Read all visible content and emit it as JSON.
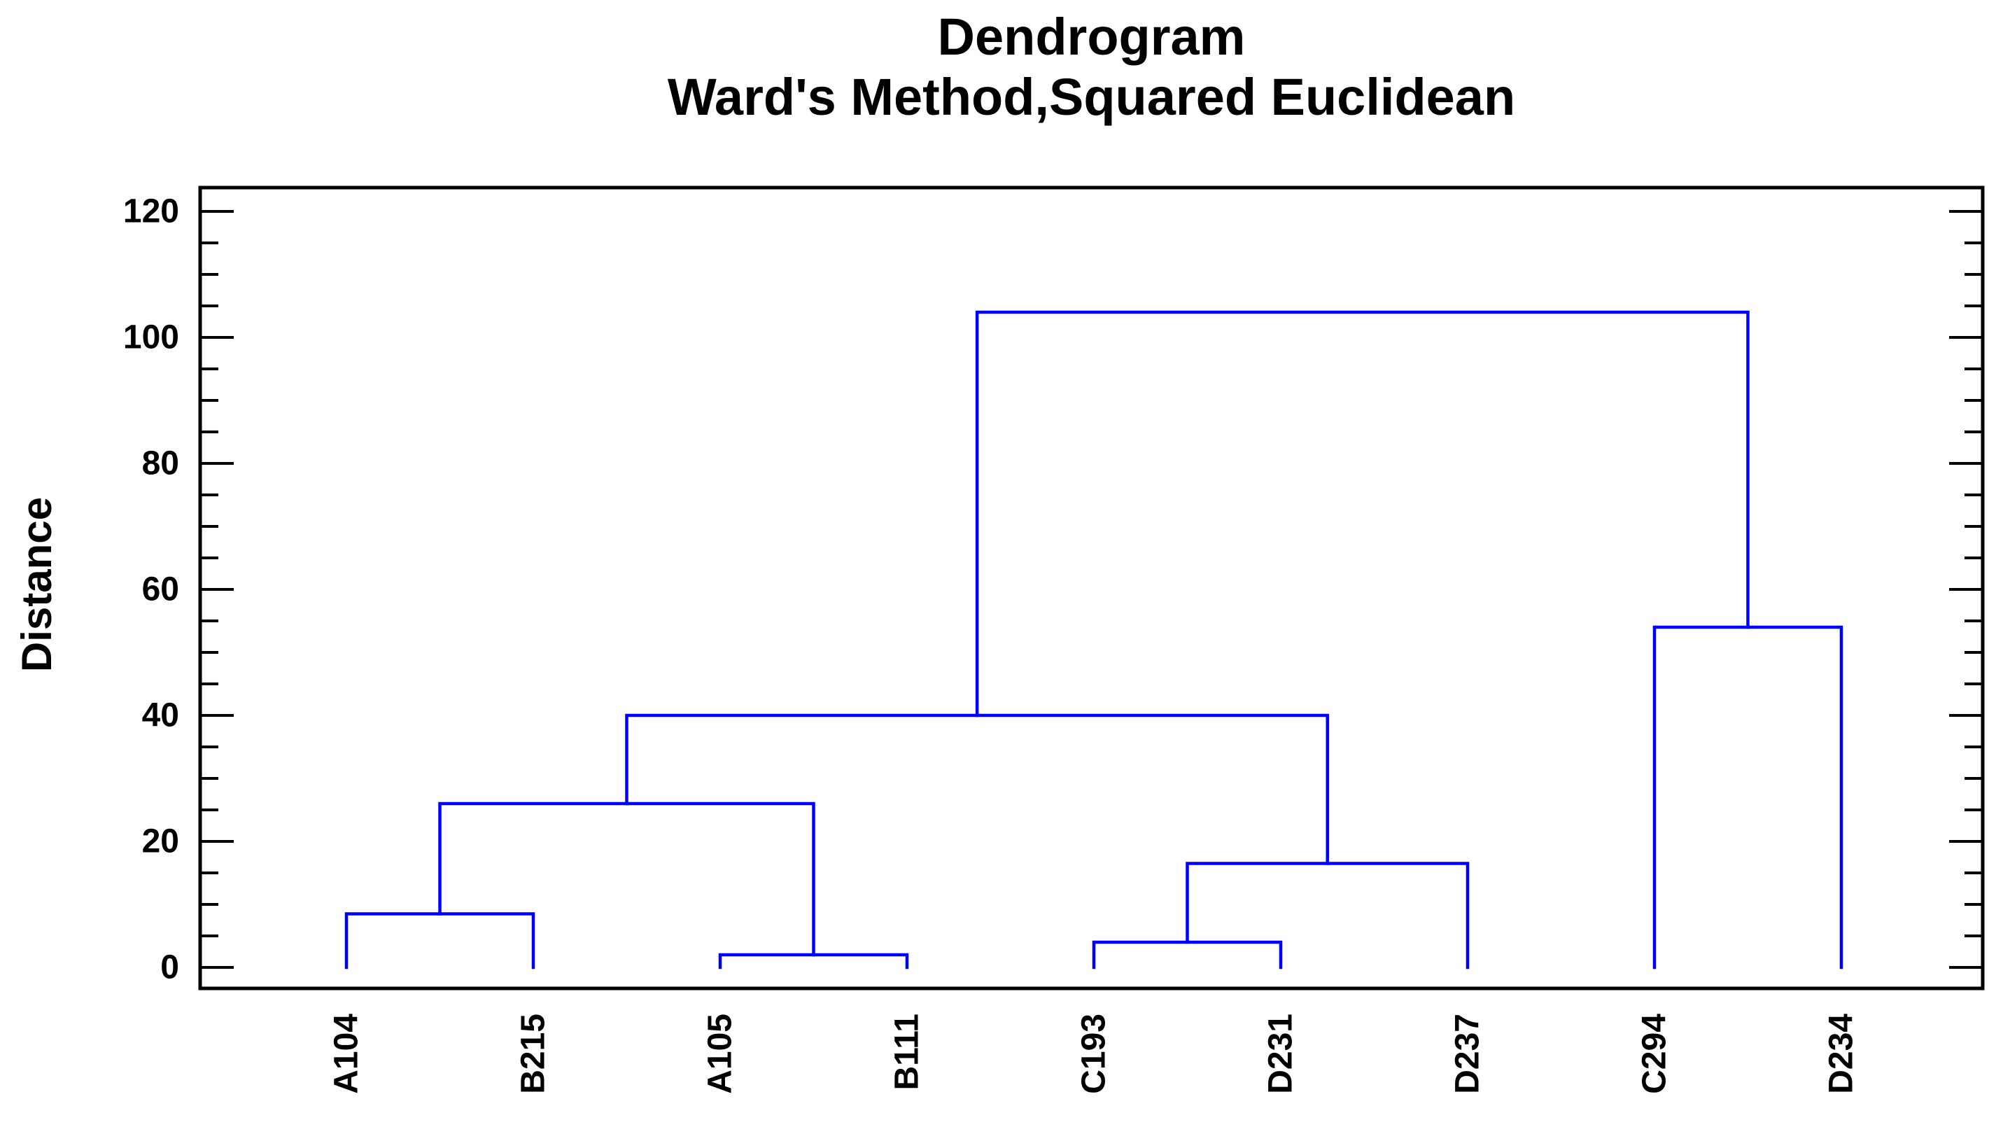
{
  "header": {
    "title": "Dendrogram",
    "subtitle": "Ward's Method,Squared Euclidean"
  },
  "chart_data": {
    "type": "dendrogram",
    "title": "Dendrogram",
    "subtitle": "Ward's Method,Squared Euclidean",
    "ylabel": "Distance",
    "xlabel": "",
    "leaves": [
      "A104",
      "B215",
      "A105",
      "B111",
      "C193",
      "D231",
      "D237",
      "C294",
      "D234"
    ],
    "merges": [
      {
        "id": "m1",
        "a": "A104",
        "b": "B215",
        "height": 8.5
      },
      {
        "id": "m2",
        "a": "A105",
        "b": "B111",
        "height": 2
      },
      {
        "id": "m3",
        "a": "m1",
        "b": "m2",
        "height": 26
      },
      {
        "id": "m4",
        "a": "C193",
        "b": "D231",
        "height": 4
      },
      {
        "id": "m5",
        "a": "m4",
        "b": "D237",
        "height": 16.5
      },
      {
        "id": "m6",
        "a": "m3",
        "b": "m5",
        "height": 40
      },
      {
        "id": "m7",
        "a": "C294",
        "b": "D234",
        "height": 54
      },
      {
        "id": "m8",
        "a": "m6",
        "b": "m7",
        "height": 104
      }
    ],
    "y_axis": {
      "label": "Distance",
      "ylim": [
        0,
        120
      ],
      "major_tick_step": 20,
      "minor_tick_step": 5,
      "major_tick_labels": [
        "0",
        "20",
        "40",
        "60",
        "80",
        "100",
        "120"
      ],
      "grid": false
    },
    "legend": "none",
    "colors": {
      "link_color": "#0000FF",
      "frame_color": "#000000",
      "text_color": "#000000",
      "background": "#FFFFFF"
    }
  }
}
